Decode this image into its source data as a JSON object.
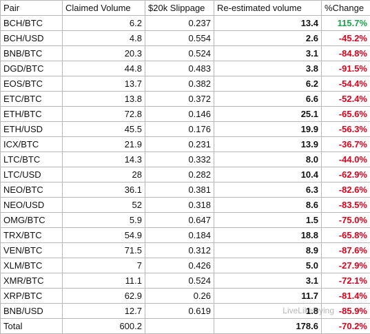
{
  "table": {
    "header": [
      "Pair",
      "Claimed Volume",
      "$20k Slippage",
      "Re-estimated volume",
      "%Change"
    ],
    "rows": [
      [
        "BCH/BTC",
        "6.2",
        "0.237",
        "13.4",
        "115.7%"
      ],
      [
        "BCH/USD",
        "4.8",
        "0.554",
        "2.6",
        "-45.2%"
      ],
      [
        "BNB/BTC",
        "20.3",
        "0.524",
        "3.1",
        "-84.8%"
      ],
      [
        "DGD/BTC",
        "44.8",
        "0.483",
        "3.8",
        "-91.5%"
      ],
      [
        "EOS/BTC",
        "13.7",
        "0.382",
        "6.2",
        "-54.4%"
      ],
      [
        "ETC/BTC",
        "13.8",
        "0.372",
        "6.6",
        "-52.4%"
      ],
      [
        "ETH/BTC",
        "72.8",
        "0.146",
        "25.1",
        "-65.6%"
      ],
      [
        "ETH/USD",
        "45.5",
        "0.176",
        "19.9",
        "-56.3%"
      ],
      [
        "ICX/BTC",
        "21.9",
        "0.231",
        "13.9",
        "-36.7%"
      ],
      [
        "LTC/BTC",
        "14.3",
        "0.332",
        "8.0",
        "-44.0%"
      ],
      [
        "LTC/USD",
        "28",
        "0.282",
        "10.4",
        "-62.9%"
      ],
      [
        "NEO/BTC",
        "36.1",
        "0.381",
        "6.3",
        "-82.6%"
      ],
      [
        "NEO/USD",
        "52",
        "0.318",
        "8.6",
        "-83.5%"
      ],
      [
        "OMG/BTC",
        "5.9",
        "0.647",
        "1.5",
        "-75.0%"
      ],
      [
        "TRX/BTC",
        "54.9",
        "0.184",
        "18.8",
        "-65.8%"
      ],
      [
        "VEN/BTC",
        "71.5",
        "0.312",
        "8.9",
        "-87.6%"
      ],
      [
        "XLM/BTC",
        "7",
        "0.426",
        "5.0",
        "-27.9%"
      ],
      [
        "XMR/BTC",
        "11.1",
        "0.524",
        "3.1",
        "-72.1%"
      ],
      [
        "XRP/BTC",
        "62.9",
        "0.26",
        "11.7",
        "-81.4%"
      ],
      [
        "BNB/USD",
        "12.7",
        "0.619",
        "1.8",
        "-85.9%"
      ]
    ],
    "total": {
      "label": "Total",
      "claimed": "600.2",
      "reestimated": "178.6",
      "change": "-70.2%"
    }
  },
  "watermark": "LiveLikeDying"
}
